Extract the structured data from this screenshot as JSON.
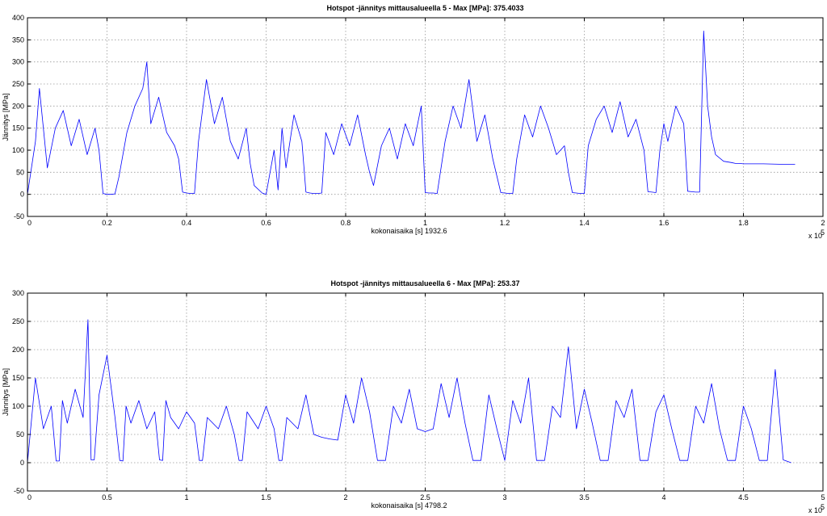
{
  "chart_data": [
    {
      "type": "line",
      "title": "Hotspot -jännitys mittausalueella 5 - Max [MPa]: 375.4033",
      "xlabel": "kokonaisaika [s] 1932.6",
      "ylabel": "Jännitys [MPa]",
      "x_multiplier_base": "x 10",
      "x_multiplier_exp": "5",
      "xlim": [
        0,
        2
      ],
      "ylim": [
        -50,
        400
      ],
      "xticks": [
        0,
        0.2,
        0.4,
        0.6,
        0.8,
        1,
        1.2,
        1.4,
        1.6,
        1.8,
        2
      ],
      "xtick_labels": [
        "0",
        "0.2",
        "0.4",
        "0.6",
        "0.8",
        "1",
        "1.2",
        "1.4",
        "1.6",
        "1.8",
        "2"
      ],
      "yticks": [
        -50,
        0,
        50,
        100,
        150,
        200,
        250,
        300,
        350,
        400
      ],
      "ytick_labels": [
        "-50",
        "0",
        "50",
        "100",
        "150",
        "200",
        "250",
        "300",
        "350",
        "400"
      ],
      "grid": true,
      "color": "#0000ff",
      "series": [
        {
          "x": [
            0,
            0.02,
            0.03,
            0.05,
            0.07,
            0.09,
            0.11,
            0.13,
            0.15,
            0.17,
            0.18,
            0.19,
            0.2,
            0.21,
            0.22,
            0.23,
            0.25,
            0.27,
            0.29,
            0.3,
            0.31,
            0.33,
            0.35,
            0.37,
            0.38,
            0.39,
            0.4,
            0.41,
            0.42,
            0.43,
            0.45,
            0.47,
            0.49,
            0.51,
            0.53,
            0.55,
            0.56,
            0.57,
            0.59,
            0.6,
            0.61,
            0.62,
            0.63,
            0.64,
            0.65,
            0.67,
            0.69,
            0.7,
            0.71,
            0.72,
            0.73,
            0.74,
            0.75,
            0.77,
            0.79,
            0.81,
            0.83,
            0.85,
            0.86,
            0.87,
            0.89,
            0.91,
            0.93,
            0.95,
            0.97,
            0.99,
            1.0,
            1.01,
            1.02,
            1.03,
            1.05,
            1.07,
            1.09,
            1.11,
            1.13,
            1.15,
            1.17,
            1.19,
            1.2,
            1.21,
            1.22,
            1.23,
            1.25,
            1.27,
            1.29,
            1.31,
            1.33,
            1.35,
            1.36,
            1.37,
            1.38,
            1.39,
            1.4,
            1.41,
            1.43,
            1.45,
            1.47,
            1.49,
            1.51,
            1.53,
            1.55,
            1.56,
            1.57,
            1.58,
            1.59,
            1.6,
            1.61,
            1.63,
            1.65,
            1.66,
            1.67,
            1.68,
            1.69,
            1.7,
            1.71,
            1.72,
            1.73,
            1.75,
            1.77,
            1.78,
            1.79,
            1.8,
            1.85,
            1.9,
            1.93
          ],
          "y": [
            0,
            120,
            240,
            60,
            150,
            190,
            110,
            170,
            90,
            150,
            100,
            2,
            0,
            0,
            1,
            40,
            140,
            200,
            240,
            300,
            160,
            220,
            140,
            110,
            80,
            5,
            3,
            2,
            2,
            120,
            260,
            160,
            220,
            120,
            80,
            150,
            70,
            20,
            3,
            0,
            50,
            100,
            10,
            150,
            60,
            180,
            120,
            5,
            3,
            2,
            2,
            3,
            140,
            90,
            160,
            110,
            180,
            90,
            50,
            20,
            110,
            150,
            80,
            160,
            110,
            200,
            4,
            3,
            3,
            2,
            120,
            200,
            150,
            260,
            120,
            180,
            80,
            4,
            3,
            2,
            2,
            80,
            180,
            130,
            200,
            150,
            90,
            110,
            50,
            4,
            3,
            2,
            2,
            110,
            170,
            200,
            140,
            210,
            130,
            170,
            100,
            6,
            5,
            4,
            100,
            160,
            120,
            200,
            160,
            7,
            6,
            5,
            5,
            370,
            200,
            130,
            90,
            75,
            72,
            70,
            70,
            69,
            69,
            68,
            68
          ]
        }
      ]
    },
    {
      "type": "line",
      "title": "Hotspot -jännitys mittausalueella 6 - Max [MPa]: 253.37",
      "xlabel": "kokonaisaika [s] 4798.2",
      "ylabel": "Jännitys [MPa]",
      "x_multiplier_base": "x 10",
      "x_multiplier_exp": "5",
      "xlim": [
        0,
        5
      ],
      "ylim": [
        -50,
        300
      ],
      "xticks": [
        0,
        0.5,
        1,
        1.5,
        2,
        2.5,
        3,
        3.5,
        4,
        4.5,
        5
      ],
      "xtick_labels": [
        "0",
        "0.5",
        "1",
        "1.5",
        "2",
        "2.5",
        "3",
        "3.5",
        "4",
        "4.5",
        "5"
      ],
      "yticks": [
        -50,
        0,
        50,
        100,
        150,
        200,
        250,
        300
      ],
      "ytick_labels": [
        "-50",
        "0",
        "50",
        "100",
        "150",
        "200",
        "250",
        "300"
      ],
      "grid": true,
      "color": "#0000ff",
      "series": [
        {
          "x": [
            0,
            0.05,
            0.1,
            0.15,
            0.18,
            0.2,
            0.22,
            0.25,
            0.3,
            0.35,
            0.38,
            0.4,
            0.42,
            0.45,
            0.5,
            0.55,
            0.58,
            0.6,
            0.62,
            0.65,
            0.7,
            0.75,
            0.8,
            0.83,
            0.85,
            0.87,
            0.9,
            0.95,
            1.0,
            1.05,
            1.08,
            1.1,
            1.13,
            1.2,
            1.25,
            1.3,
            1.33,
            1.35,
            1.38,
            1.45,
            1.5,
            1.55,
            1.58,
            1.6,
            1.63,
            1.7,
            1.75,
            1.8,
            1.85,
            1.9,
            1.95,
            2.0,
            2.05,
            2.1,
            2.15,
            2.2,
            2.25,
            2.3,
            2.35,
            2.4,
            2.45,
            2.5,
            2.55,
            2.6,
            2.65,
            2.7,
            2.75,
            2.8,
            2.85,
            2.9,
            2.95,
            3.0,
            3.05,
            3.1,
            3.15,
            3.2,
            3.25,
            3.3,
            3.35,
            3.4,
            3.45,
            3.5,
            3.55,
            3.6,
            3.65,
            3.7,
            3.75,
            3.8,
            3.85,
            3.9,
            3.95,
            4.0,
            4.05,
            4.1,
            4.15,
            4.2,
            4.25,
            4.3,
            4.35,
            4.4,
            4.45,
            4.5,
            4.55,
            4.6,
            4.65,
            4.7,
            4.75,
            4.8
          ],
          "y": [
            0,
            150,
            60,
            100,
            3,
            3,
            110,
            70,
            130,
            80,
            253,
            5,
            5,
            120,
            190,
            80,
            4,
            3,
            100,
            70,
            110,
            60,
            90,
            5,
            4,
            110,
            80,
            60,
            90,
            70,
            4,
            4,
            80,
            60,
            100,
            50,
            4,
            4,
            90,
            60,
            100,
            60,
            4,
            4,
            80,
            60,
            120,
            50,
            45,
            42,
            40,
            120,
            70,
            150,
            90,
            4,
            4,
            100,
            70,
            130,
            60,
            55,
            60,
            140,
            80,
            150,
            70,
            4,
            4,
            120,
            60,
            4,
            110,
            70,
            150,
            4,
            4,
            100,
            80,
            205,
            60,
            130,
            70,
            4,
            4,
            110,
            80,
            130,
            4,
            4,
            90,
            120,
            60,
            4,
            4,
            100,
            70,
            140,
            60,
            4,
            4,
            100,
            60,
            4,
            4,
            165,
            5,
            0
          ]
        }
      ]
    }
  ]
}
